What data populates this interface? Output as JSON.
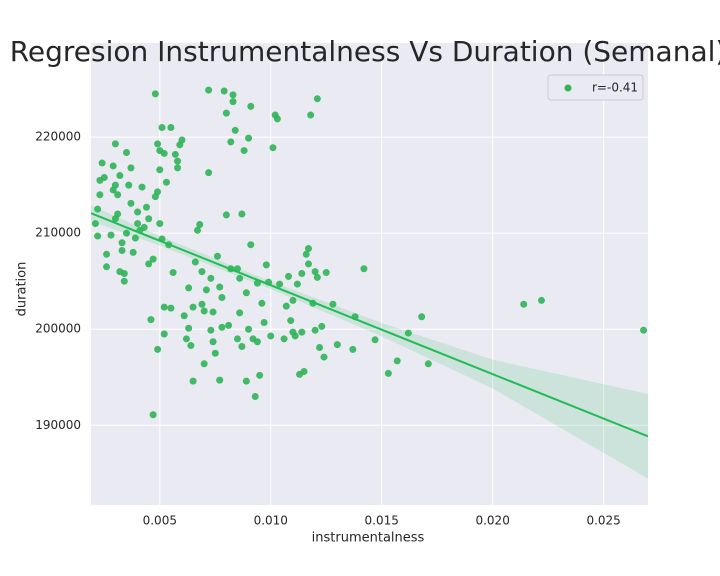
{
  "chart_data": {
    "type": "scatter",
    "title": "Regresion Instrumentalness Vs Duration (Semanal)",
    "xlabel": "instrumentalness",
    "ylabel": "duration",
    "xlim": [
      0.0019,
      0.027
    ],
    "ylim": [
      181700,
      229800
    ],
    "xticks": [
      0.005,
      {
        "value": 0.01,
        "label": "0.010"
      },
      0.015,
      {
        "value": 0.02,
        "label": "0.020"
      },
      0.025
    ],
    "yticks": [
      190000,
      200000,
      210000,
      220000
    ],
    "grid": true,
    "legend": "upper right",
    "x": [
      0.0021,
      0.0022,
      0.0022,
      0.0023,
      0.0023,
      0.0024,
      0.0025,
      0.0026,
      0.0026,
      0.0028,
      0.0029,
      0.0029,
      0.003,
      0.003,
      0.003,
      0.0031,
      0.0031,
      0.0032,
      0.0032,
      0.0033,
      0.0033,
      0.0034,
      0.0034,
      0.0035,
      0.0035,
      0.0036,
      0.0037,
      0.0037,
      0.0038,
      0.0039,
      0.004,
      0.004,
      0.0041,
      0.0042,
      0.0043,
      0.0044,
      0.0045,
      0.0045,
      0.0046,
      0.0047,
      0.0047,
      0.0048,
      0.0048,
      0.0049,
      0.0049,
      0.0049,
      0.005,
      0.005,
      0.005,
      0.0051,
      0.0051,
      0.0052,
      0.0052,
      0.0052,
      0.0053,
      0.0054,
      0.0055,
      0.0055,
      0.0056,
      0.0057,
      0.0058,
      0.0058,
      0.0059,
      0.006,
      0.0061,
      0.0062,
      0.0063,
      0.0063,
      0.0064,
      0.0065,
      0.0065,
      0.0066,
      0.0067,
      0.0068,
      0.0069,
      0.0069,
      0.007,
      0.007,
      0.0071,
      0.0072,
      0.0072,
      0.0073,
      0.0073,
      0.0074,
      0.0074,
      0.0075,
      0.0076,
      0.0077,
      0.0077,
      0.0078,
      0.0078,
      0.0079,
      0.008,
      0.008,
      0.0081,
      0.0082,
      0.0082,
      0.0083,
      0.0083,
      0.0084,
      0.0085,
      0.0085,
      0.0086,
      0.0086,
      0.0087,
      0.0087,
      0.0088,
      0.0089,
      0.0089,
      0.009,
      0.009,
      0.0091,
      0.0091,
      0.0092,
      0.0093,
      0.0094,
      0.0094,
      0.0095,
      0.0096,
      0.0097,
      0.0098,
      0.0099,
      0.01,
      0.0101,
      0.0102,
      0.0103,
      0.0104,
      0.0106,
      0.0107,
      0.0108,
      0.0109,
      0.011,
      0.011,
      0.0111,
      0.0112,
      0.0113,
      0.0114,
      0.0114,
      0.0115,
      0.0116,
      0.0117,
      0.0117,
      0.0118,
      0.0119,
      0.012,
      0.012,
      0.0121,
      0.0121,
      0.0122,
      0.0123,
      0.0124,
      0.0125,
      0.0128,
      0.013,
      0.0137,
      0.0138,
      0.0142,
      0.0147,
      0.0153,
      0.0157,
      0.0162,
      0.0168,
      0.0171,
      0.0214,
      0.0222,
      0.0268
    ],
    "series": [
      {
        "name": "r=-0.41",
        "color": "#2fb457",
        "values": [
          211000,
          212500,
          209700,
          214000,
          215500,
          217300,
          215800,
          207800,
          206500,
          209800,
          214500,
          217000,
          219300,
          215000,
          211500,
          212000,
          214000,
          216000,
          206000,
          209000,
          208200,
          205800,
          205000,
          218400,
          210000,
          215000,
          216800,
          213100,
          208000,
          209500,
          211000,
          212200,
          210300,
          214800,
          210600,
          212700,
          206800,
          211500,
          201000,
          191100,
          207300,
          213800,
          224500,
          214300,
          219300,
          197900,
          218600,
          216600,
          211000,
          221000,
          209400,
          218300,
          202300,
          199500,
          215300,
          208800,
          202200,
          221000,
          205900,
          218200,
          217500,
          216800,
          219200,
          219700,
          201400,
          199000,
          204300,
          200100,
          198300,
          202300,
          194600,
          207000,
          210300,
          210900,
          206000,
          202600,
          201900,
          196400,
          204100,
          216300,
          224900,
          205300,
          199900,
          201800,
          198700,
          197500,
          207600,
          204400,
          194700,
          203300,
          200200,
          224800,
          222500,
          211900,
          200400,
          206300,
          219500,
          224400,
          223700,
          220700,
          206300,
          199000,
          205300,
          201700,
          212000,
          198200,
          218600,
          194600,
          203800,
          219900,
          200000,
          223200,
          208800,
          199000,
          193000,
          204800,
          198700,
          195200,
          202700,
          200700,
          206700,
          204900,
          199300,
          218900,
          222300,
          221900,
          204700,
          199000,
          202400,
          205500,
          200900,
          199700,
          203000,
          199300,
          204700,
          195300,
          205800,
          199700,
          195600,
          207800,
          206800,
          208400,
          222300,
          202700,
          199900,
          206000,
          224000,
          205400,
          198100,
          200300,
          197100,
          205900,
          202600,
          198400,
          197900,
          201300,
          206300,
          198900,
          195400,
          196700,
          199600,
          201300,
          196400,
          202600,
          203000,
          199900
        ]
      }
    ],
    "regression": {
      "color": "#22bb55",
      "x": [
        0.0019,
        0.027
      ],
      "y": [
        212080,
        188850
      ],
      "ci_x": [
        0.0019,
        0.005,
        0.01,
        0.015,
        0.02,
        0.027
      ],
      "ci_upper": [
        212910,
        209710,
        204980,
        200660,
        196830,
        193250
      ],
      "ci_lower": [
        211250,
        208710,
        204180,
        199260,
        193830,
        184450
      ]
    }
  }
}
